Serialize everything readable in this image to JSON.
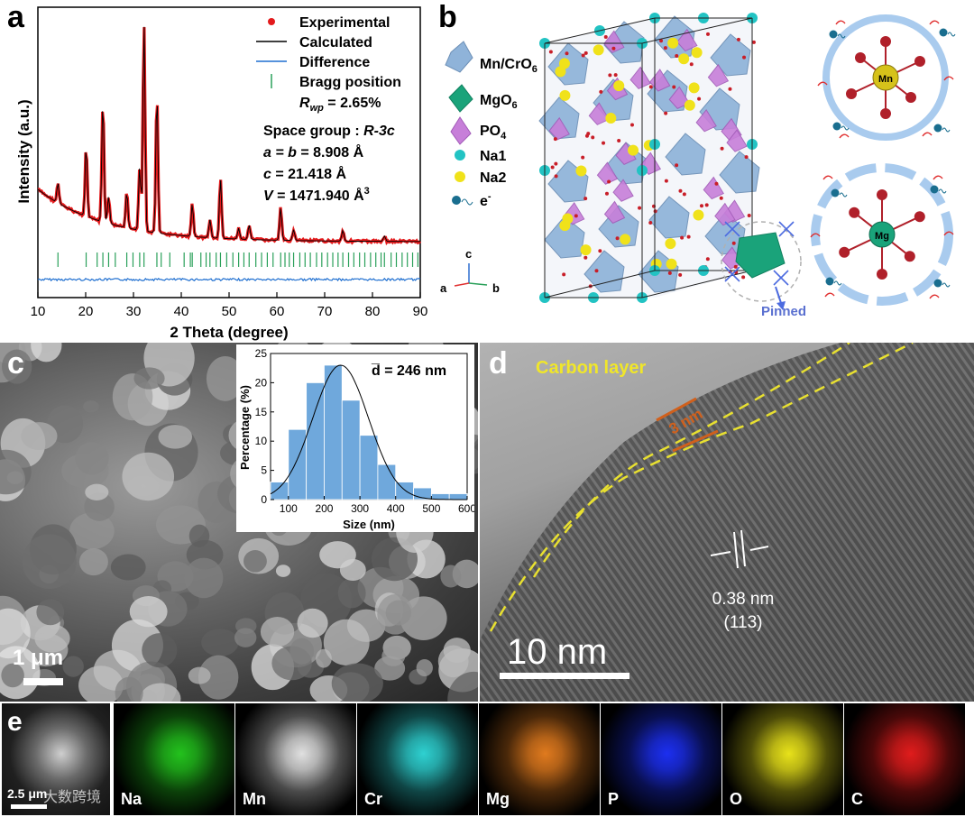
{
  "panel_labels": {
    "a": "a",
    "b": "b",
    "c": "c",
    "d": "d",
    "e": "e"
  },
  "panel_a": {
    "legend": {
      "experimental": "Experimental",
      "calculated": "Calculated",
      "difference": "Difference",
      "bragg": "Bragg position",
      "rwp_r": "R",
      "rwp_sub": "wp",
      "rwp_val": " = 2.65%"
    },
    "space_group_label": "Space group : ",
    "space_group_value": "R-3c",
    "params": {
      "ab_var": "a = b",
      "ab_val": " = 8.908 Å",
      "c_var": "c",
      "c_val": " = 21.418 Å",
      "v_var": "V",
      "v_val": " = 1471.940 Å",
      "v_sup": "3"
    },
    "colors": {
      "experimental": "#e31a1c",
      "calculated": "#000000",
      "difference": "#1f6fd0",
      "bragg": "#2aa05a"
    }
  },
  "panel_b": {
    "legend": {
      "mncr": "Mn/CrO",
      "mncr_sub": "6",
      "mgo": "MgO",
      "mgo_sub": "6",
      "po": "PO",
      "po_sub": "4",
      "na1": "Na1",
      "na2": "Na2",
      "electron": "e",
      "electron_sup": "-"
    },
    "axes": {
      "a": "a",
      "b": "b",
      "c": "c"
    },
    "pinned": "Pinned",
    "mn_label": "Mn",
    "mg_label": "Mg",
    "colors": {
      "mncr": "#8fb3d9",
      "mgo": "#1aa37a",
      "po": "#c77fd9",
      "na1": "#22c3c3",
      "na2": "#f0e21a",
      "oxygen": "#b0202a"
    }
  },
  "panel_c": {
    "scale_bar": "1 μm",
    "inset": {
      "mean_label": "d̅ = 246 nm",
      "xlabel": "Size (nm)",
      "ylabel": "Percentage (%)"
    },
    "chart_data": {
      "type": "bar",
      "title": "",
      "xlabel": "Size (nm)",
      "ylabel": "Percentage (%)",
      "categories": [
        "50-100",
        "100-150",
        "150-200",
        "200-250",
        "250-300",
        "300-350",
        "350-400",
        "400-450",
        "450-500",
        "500-550",
        "550-600"
      ],
      "values": [
        3,
        12,
        20,
        23,
        17,
        11,
        6,
        3,
        2,
        1,
        1
      ],
      "fit": {
        "type": "gaussian",
        "mean": 246,
        "sigma": 78,
        "peak": 23
      },
      "xlim": [
        50,
        600
      ],
      "ylim": [
        0,
        25
      ],
      "xticks": [
        100,
        200,
        300,
        400,
        500,
        600
      ],
      "yticks": [
        0,
        5,
        10,
        15,
        20,
        25
      ],
      "annotation": "d̅ = 246 nm"
    }
  },
  "panel_d": {
    "carbon_layer": "Carbon layer",
    "thickness": "3 nm",
    "spacing": "0.38 nm",
    "plane": "(113)",
    "scale_bar": "10 nm"
  },
  "panel_e": {
    "scale_bar": "2.5 μm",
    "watermark": "大数跨境",
    "elements": [
      {
        "symbol": "Na",
        "color": "#23c21d"
      },
      {
        "symbol": "Mn",
        "color": "#e0e0e0"
      },
      {
        "symbol": "Cr",
        "color": "#2ed1d1"
      },
      {
        "symbol": "Mg",
        "color": "#e07a1e"
      },
      {
        "symbol": "P",
        "color": "#1c2ff0"
      },
      {
        "symbol": "O",
        "color": "#e8e21a"
      },
      {
        "symbol": "C",
        "color": "#e01c1c"
      }
    ]
  },
  "chart_data": {
    "type": "bar",
    "title": "",
    "xlabel": "Size (nm)",
    "ylabel": "Percentage (%)",
    "categories": [
      "50-100",
      "100-150",
      "150-200",
      "200-250",
      "250-300",
      "300-350",
      "350-400",
      "400-450",
      "450-500",
      "500-550",
      "550-600"
    ],
    "values": [
      3,
      12,
      20,
      23,
      17,
      11,
      6,
      3,
      2,
      1,
      1
    ],
    "xlim": [
      50,
      600
    ],
    "ylim": [
      0,
      25
    ]
  },
  "xrd_axes": {
    "xlabel": "2 Theta (degree)",
    "ylabel": "Intensity (a.u.)",
    "xticks": [
      10,
      20,
      30,
      40,
      50,
      60,
      70,
      80,
      90
    ]
  }
}
